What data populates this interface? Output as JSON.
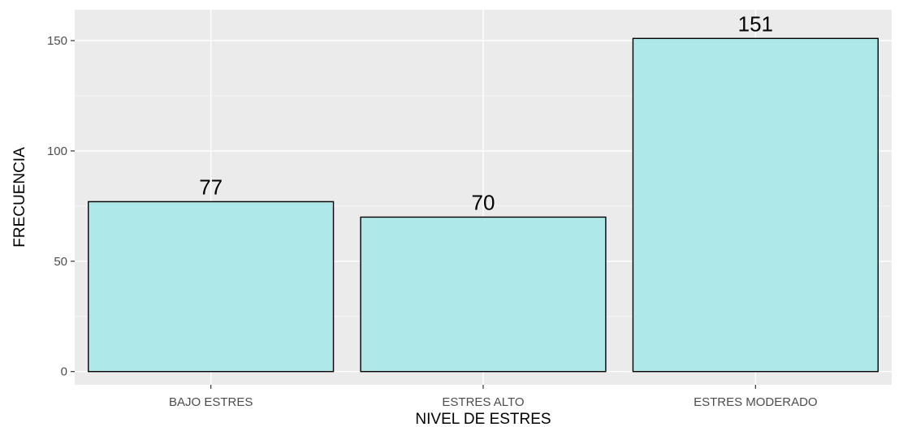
{
  "chart_data": {
    "type": "bar",
    "categories": [
      "BAJO ESTRES",
      "ESTRES ALTO",
      "ESTRES MODERADO"
    ],
    "values": [
      77,
      70,
      151
    ],
    "data_labels": [
      "77",
      "70",
      "151"
    ],
    "xlabel": "NIVEL DE ESTRES",
    "ylabel": "FRECUENCIA",
    "ylim": [
      -6,
      164
    ],
    "yticks": [
      0,
      50,
      100,
      150
    ],
    "grid": true,
    "colors": {
      "bar_fill": "#aee8e8",
      "bar_stroke": "#000000",
      "panel_bg": "#ebebeb",
      "grid_major": "#ffffff",
      "tick_text": "#4d4d4d"
    }
  }
}
